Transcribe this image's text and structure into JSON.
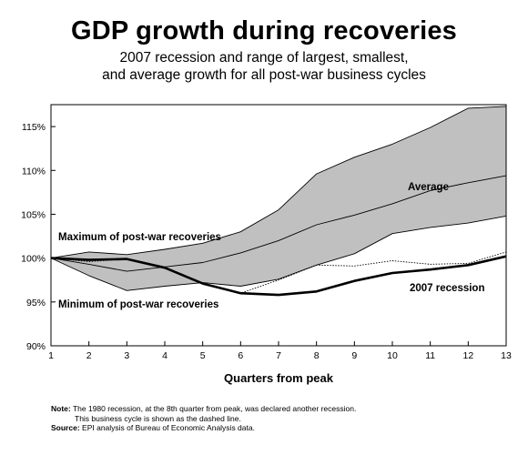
{
  "chart_data": {
    "type": "line",
    "title": "GDP growth during recoveries",
    "subtitle": [
      "2007 recession and range of largest, smallest,",
      "and average growth for all post-war business cycles"
    ],
    "xlabel": "Quarters from peak",
    "ylabel": "",
    "x": [
      1,
      2,
      3,
      4,
      5,
      6,
      7,
      8,
      9,
      10,
      11,
      12,
      13
    ],
    "xlim": [
      1,
      13
    ],
    "ylim": [
      90,
      117.5
    ],
    "y_ticks": [
      90,
      95,
      100,
      105,
      110,
      115
    ],
    "y_tick_labels": [
      "90%",
      "95%",
      "100%",
      "105%",
      "110%",
      "115%"
    ],
    "grid": false,
    "legend": "none",
    "colors": {
      "range_fill": "#c0c0c0",
      "line": "#000000",
      "border": "#000000"
    },
    "series": [
      {
        "name": "Maximum of post-war recoveries",
        "style": "thin",
        "values": [
          100,
          100.7,
          100.4,
          101.0,
          101.7,
          103.0,
          105.5,
          109.6,
          111.5,
          113.0,
          114.9,
          117.1,
          117.3
        ]
      },
      {
        "name": "Minimum of post-war recoveries",
        "style": "thin",
        "values": [
          100,
          98.0,
          96.3,
          96.8,
          97.2,
          96.8,
          97.6,
          99.2,
          100.5,
          102.8,
          103.5,
          104.0,
          104.8
        ]
      },
      {
        "name": "Average",
        "style": "thin",
        "values": [
          100,
          99.3,
          98.5,
          99.0,
          99.5,
          100.6,
          102.0,
          103.8,
          104.9,
          106.2,
          107.7,
          108.6,
          109.4
        ]
      },
      {
        "name": "2007 recession",
        "style": "thick",
        "values": [
          100,
          99.8,
          99.9,
          98.9,
          97.1,
          96.0,
          95.8,
          96.2,
          97.4,
          98.3,
          98.7,
          99.2,
          100.2
        ]
      },
      {
        "name": "",
        "style": "dashed",
        "values": [
          100,
          99.6,
          99.9,
          98.9,
          97.1,
          96.0,
          97.5,
          99.2,
          99.1,
          99.7,
          99.3,
          99.4,
          100.7
        ]
      }
    ],
    "annotations": [
      {
        "text": "Average"
      },
      {
        "text": "Maximum of post-war recoveries"
      },
      {
        "text": "Minimum of post-war recoveries"
      },
      {
        "text": "2007 recession"
      }
    ]
  },
  "notes": {
    "note_label": "Note:",
    "note_text": "The 1980 recession, at the 8th quarter from peak, was declared another recession.",
    "note_text2": "This business cycle is shown as the dashed line.",
    "source_label": "Source:",
    "source_text": "EPI analysis of Bureau of Economic Analysis data."
  }
}
